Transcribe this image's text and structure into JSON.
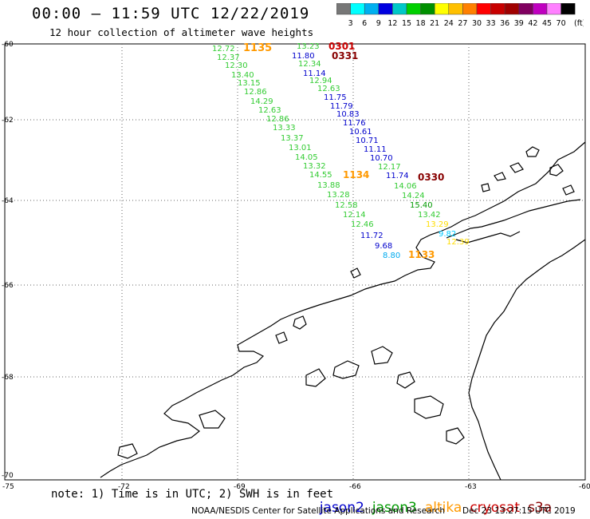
{
  "header": {
    "title": "00:00 – 11:59 UTC 12/22/2019",
    "subtitle": "12 hour collection of altimeter wave heights"
  },
  "colorbar": {
    "colors": [
      "#777777",
      "#00ffff",
      "#00b0f0",
      "#0000e0",
      "#00c8c8",
      "#00d000",
      "#009000",
      "#ffff00",
      "#ffc000",
      "#ff8000",
      "#ff0000",
      "#c80000",
      "#a00000",
      "#800060",
      "#c000c0",
      "#ff80ff",
      "#000000"
    ],
    "labels": [
      "3",
      "6",
      "9",
      "12",
      "15",
      "18",
      "21",
      "24",
      "27",
      "30",
      "33",
      "36",
      "39",
      "42",
      "45",
      "70",
      "(ft)"
    ]
  },
  "axes": {
    "lat_labels": [
      "-60",
      "-62",
      "-64",
      "-66",
      "-68",
      "-70"
    ],
    "lon_labels": [
      "-75",
      "-72",
      "-69",
      "-66",
      "-63",
      "-60"
    ]
  },
  "tracks": {
    "times": [
      {
        "text": "1135",
        "color": "#ff9900"
      },
      {
        "text": "0301",
        "color": "#cc0000"
      },
      {
        "text": "0331",
        "color": "#880000"
      },
      {
        "text": "1134",
        "color": "#ff9900"
      },
      {
        "text": "0330",
        "color": "#880000"
      },
      {
        "text": "1133",
        "color": "#ff9900"
      }
    ],
    "values": [
      {
        "text": "12.72",
        "color": "#33cc33"
      },
      {
        "text": "12.37",
        "color": "#33cc33"
      },
      {
        "text": "12.30",
        "color": "#33cc33"
      },
      {
        "text": "13.40",
        "color": "#33cc33"
      },
      {
        "text": "13.15",
        "color": "#33cc33"
      },
      {
        "text": "12.86",
        "color": "#33cc33"
      },
      {
        "text": "14.29",
        "color": "#33cc33"
      },
      {
        "text": "12.63",
        "color": "#33cc33"
      },
      {
        "text": "12.86",
        "color": "#33cc33"
      },
      {
        "text": "13.33",
        "color": "#33cc33"
      },
      {
        "text": "13.37",
        "color": "#33cc33"
      },
      {
        "text": "13.01",
        "color": "#33cc33"
      },
      {
        "text": "14.05",
        "color": "#33cc33"
      },
      {
        "text": "13.32",
        "color": "#33cc33"
      },
      {
        "text": "14.55",
        "color": "#33cc33"
      },
      {
        "text": "13.88",
        "color": "#33cc33"
      },
      {
        "text": "13.28",
        "color": "#33cc33"
      },
      {
        "text": "12.58",
        "color": "#33cc33"
      },
      {
        "text": "12.14",
        "color": "#33cc33"
      },
      {
        "text": "12.46",
        "color": "#33cc33"
      },
      {
        "text": "11.72",
        "color": "#0000cc"
      },
      {
        "text": "9.68",
        "color": "#0000cc"
      },
      {
        "text": "8.80",
        "color": "#00aaee"
      },
      {
        "text": "13.23",
        "color": "#33cc33"
      },
      {
        "text": "11.80",
        "color": "#0000cc"
      },
      {
        "text": "12.34",
        "color": "#33cc33"
      },
      {
        "text": "11.14",
        "color": "#0000cc"
      },
      {
        "text": "12.94",
        "color": "#33cc33"
      },
      {
        "text": "12.63",
        "color": "#33cc33"
      },
      {
        "text": "11.75",
        "color": "#0000cc"
      },
      {
        "text": "11.79",
        "color": "#0000cc"
      },
      {
        "text": "10.83",
        "color": "#0000cc"
      },
      {
        "text": "11.76",
        "color": "#0000cc"
      },
      {
        "text": "10.61",
        "color": "#0000cc"
      },
      {
        "text": "10.71",
        "color": "#0000cc"
      },
      {
        "text": "11.11",
        "color": "#0000cc"
      },
      {
        "text": "10.70",
        "color": "#0000cc"
      },
      {
        "text": "12.17",
        "color": "#33cc33"
      },
      {
        "text": "11.74",
        "color": "#0000cc"
      },
      {
        "text": "14.06",
        "color": "#33cc33"
      },
      {
        "text": "14.24",
        "color": "#33cc33"
      },
      {
        "text": "15.40",
        "color": "#009900"
      },
      {
        "text": "13.42",
        "color": "#33cc33"
      },
      {
        "text": "13.29",
        "color": "#ffdd00"
      },
      {
        "text": "9.82",
        "color": "#00ccff"
      },
      {
        "text": "12.39",
        "color": "#ffdd00"
      }
    ]
  },
  "footer": {
    "note": "note: 1) Time is in UTC; 2) SWH is in feet",
    "legend": [
      {
        "text": "jason2",
        "color": "#0000cc"
      },
      {
        "text": "jason3",
        "color": "#009900"
      },
      {
        "text": "altika",
        "color": "#ff9900"
      },
      {
        "text": "cryosat",
        "color": "#cc0000"
      },
      {
        "text": "s3a",
        "color": "#880000"
      }
    ],
    "credit": "NOAA/NESDIS Center for Satellite Applications and Research",
    "timestamp": "Dec 23 13:27:15 UTC 2019"
  }
}
